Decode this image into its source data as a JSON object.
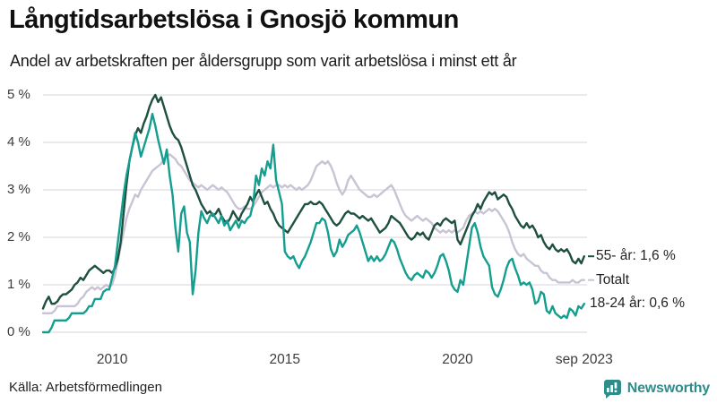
{
  "header": {
    "title": "Långtidsarbetslösa i Gnosjö kommun",
    "subtitle": "Andel av arbetskraften per åldersgrupp som varit arbetslösa i minst ett år"
  },
  "footer": {
    "source": "Källa: Arbetsförmedlingen",
    "brand": "Newsworthy"
  },
  "colors": {
    "series_55": "#1f4f40",
    "series_total": "#c8c4d4",
    "series_1824": "#149e8f",
    "grid": "#dedee3",
    "tick_text": "#3c3c3c",
    "brand": "#2e8c8a"
  },
  "chart_data": {
    "type": "line",
    "title": "Långtidsarbetslösa i Gnosjö kommun",
    "subtitle": "Andel av arbetskraften per åldersgrupp som varit arbetslösa i minst ett år",
    "unit": "%",
    "x_start": "2008-01",
    "x_end": "2023-09",
    "frequency": "monthly",
    "x_domain": [
      2008,
      2023.75
    ],
    "y_domain": [
      0,
      5
    ],
    "grid": "horizontal",
    "legend_position": "right-end-of-line",
    "y_ticks": [
      {
        "value": 0,
        "label": "0 %"
      },
      {
        "value": 1,
        "label": "1 %"
      },
      {
        "value": 2,
        "label": "2 %"
      },
      {
        "value": 3,
        "label": "3 %"
      },
      {
        "value": 4,
        "label": "4 %"
      },
      {
        "value": 5,
        "label": "5 %"
      }
    ],
    "x_ticks": [
      {
        "t": 2010,
        "label": "2010"
      },
      {
        "t": 2015,
        "label": "2015"
      },
      {
        "t": 2020,
        "label": "2020"
      },
      {
        "t": 2023.667,
        "label": "sep 2023"
      }
    ],
    "series": [
      {
        "name": "Totalt",
        "color_key": "series_total",
        "last_value_label": "Totalt",
        "legend": {
          "label": "Totalt",
          "dash": true
        },
        "values": [
          0.4,
          0.4,
          0.4,
          0.4,
          0.45,
          0.55,
          0.55,
          0.55,
          0.55,
          0.55,
          0.55,
          0.55,
          0.6,
          0.7,
          0.75,
          0.85,
          0.9,
          0.95,
          0.9,
          0.95,
          0.9,
          0.95,
          1.0,
          0.95,
          1.0,
          1.2,
          1.5,
          1.8,
          2.1,
          2.4,
          2.6,
          2.75,
          2.9,
          2.85,
          3.0,
          3.1,
          3.2,
          3.3,
          3.4,
          3.45,
          3.5,
          3.55,
          3.65,
          3.7,
          3.75,
          3.7,
          3.65,
          3.55,
          3.5,
          3.4,
          3.3,
          3.2,
          3.15,
          3.1,
          3.05,
          3.1,
          3.05,
          3.0,
          3.05,
          3.1,
          3.05,
          3.0,
          3.05,
          3.0,
          2.95,
          2.85,
          2.75,
          2.65,
          2.6,
          2.6,
          2.65,
          2.6,
          2.6,
          2.65,
          2.75,
          2.85,
          2.95,
          3.0,
          3.05,
          3.1,
          3.05,
          3.1,
          3.1,
          3.05,
          3.1,
          3.05,
          3.1,
          3.05,
          3.0,
          3.05,
          3.0,
          3.05,
          3.1,
          3.2,
          3.35,
          3.5,
          3.55,
          3.6,
          3.55,
          3.6,
          3.5,
          3.35,
          3.15,
          3.0,
          2.9,
          3.0,
          3.2,
          3.3,
          3.2,
          3.1,
          3.0,
          2.95,
          2.9,
          2.85,
          2.85,
          2.9,
          2.85,
          2.9,
          2.95,
          3.0,
          3.05,
          3.1,
          3.0,
          2.85,
          2.7,
          2.55,
          2.45,
          2.4,
          2.35,
          2.4,
          2.45,
          2.4,
          2.35,
          2.4,
          2.35,
          2.3,
          2.2,
          2.15,
          2.1,
          2.15,
          2.1,
          2.15,
          2.1,
          2.15,
          2.1,
          2.15,
          2.2,
          2.35,
          2.45,
          2.5,
          2.55,
          2.5,
          2.55,
          2.5,
          2.55,
          2.6,
          2.55,
          2.6,
          2.55,
          2.45,
          2.35,
          2.25,
          2.1,
          1.9,
          1.75,
          1.65,
          1.6,
          1.65,
          1.55,
          1.5,
          1.45,
          1.4,
          1.4,
          1.3,
          1.25,
          1.25,
          1.15,
          1.1,
          1.1,
          1.05,
          1.05,
          1.05,
          1.05,
          1.05,
          1.1,
          1.05,
          1.05,
          1.1,
          1.1
        ]
      },
      {
        "name": "55- år",
        "color_key": "series_55",
        "last_value_label": "55- år: 1,6 %",
        "legend": {
          "label": "55- år: 1,6 %",
          "dash": true
        },
        "values": [
          0.5,
          0.65,
          0.75,
          0.6,
          0.6,
          0.65,
          0.75,
          0.8,
          0.8,
          0.85,
          0.9,
          1.0,
          1.05,
          1.15,
          1.1,
          1.2,
          1.3,
          1.35,
          1.4,
          1.35,
          1.3,
          1.25,
          1.3,
          1.3,
          1.25,
          1.35,
          1.55,
          1.9,
          2.5,
          3.1,
          3.6,
          3.9,
          4.15,
          4.3,
          4.2,
          4.4,
          4.55,
          4.75,
          4.9,
          5.0,
          4.85,
          4.95,
          4.75,
          4.55,
          4.35,
          4.2,
          4.1,
          4.05,
          3.9,
          3.7,
          3.5,
          3.3,
          3.1,
          3.0,
          2.85,
          2.7,
          2.6,
          2.5,
          2.55,
          2.45,
          2.5,
          2.6,
          2.45,
          2.35,
          2.3,
          2.4,
          2.55,
          2.45,
          2.35,
          2.5,
          2.6,
          2.7,
          2.85,
          2.75,
          2.9,
          3.0,
          2.85,
          2.7,
          2.75,
          2.6,
          2.5,
          2.35,
          2.25,
          2.2,
          2.15,
          2.1,
          2.2,
          2.3,
          2.4,
          2.5,
          2.6,
          2.7,
          2.7,
          2.75,
          2.7,
          2.7,
          2.75,
          2.7,
          2.6,
          2.5,
          2.4,
          2.3,
          2.25,
          2.3,
          2.4,
          2.5,
          2.55,
          2.5,
          2.5,
          2.45,
          2.4,
          2.45,
          2.4,
          2.35,
          2.4,
          2.3,
          2.2,
          2.1,
          2.15,
          2.2,
          2.3,
          2.45,
          2.4,
          2.35,
          2.3,
          2.2,
          2.1,
          2.0,
          1.95,
          2.0,
          2.1,
          2.05,
          2.1,
          2.0,
          1.95,
          2.1,
          2.25,
          2.3,
          2.25,
          2.35,
          2.4,
          2.35,
          2.3,
          2.35,
          1.95,
          1.85,
          2.0,
          2.15,
          2.3,
          2.45,
          2.55,
          2.7,
          2.6,
          2.75,
          2.85,
          2.95,
          2.9,
          2.95,
          2.8,
          2.85,
          2.9,
          2.85,
          2.7,
          2.6,
          2.45,
          2.35,
          2.25,
          2.2,
          2.3,
          2.2,
          2.25,
          2.15,
          2.0,
          2.05,
          1.9,
          1.8,
          1.75,
          1.85,
          1.75,
          1.7,
          1.75,
          1.7,
          1.75,
          1.65,
          1.5,
          1.45,
          1.55,
          1.45,
          1.6
        ]
      },
      {
        "name": "18-24 år",
        "color_key": "series_1824",
        "last_value_label": "18-24 år: 0,6 %",
        "legend": {
          "label": "18-24 år: 0,6 %",
          "dash": false
        },
        "values": [
          0.0,
          0.0,
          0.0,
          0.1,
          0.25,
          0.25,
          0.25,
          0.25,
          0.25,
          0.3,
          0.4,
          0.4,
          0.4,
          0.4,
          0.4,
          0.45,
          0.55,
          0.55,
          0.7,
          0.7,
          0.7,
          0.85,
          0.9,
          0.9,
          1.15,
          1.4,
          1.9,
          2.4,
          2.9,
          3.3,
          3.6,
          3.9,
          4.2,
          4.0,
          3.7,
          3.9,
          4.1,
          4.3,
          4.6,
          4.35,
          4.05,
          3.8,
          3.55,
          3.85,
          3.3,
          2.9,
          2.2,
          1.7,
          2.5,
          2.65,
          2.1,
          1.9,
          0.8,
          1.3,
          2.1,
          2.55,
          2.4,
          2.3,
          2.45,
          2.5,
          2.4,
          2.3,
          2.45,
          2.25,
          2.35,
          2.15,
          2.25,
          2.35,
          2.2,
          2.35,
          2.3,
          2.4,
          2.45,
          2.7,
          3.3,
          3.1,
          3.45,
          3.3,
          3.6,
          3.45,
          3.95,
          3.2,
          2.95,
          2.7,
          1.7,
          1.6,
          1.55,
          1.6,
          1.45,
          1.35,
          1.5,
          1.6,
          1.75,
          1.9,
          2.1,
          2.3,
          2.3,
          2.4,
          2.35,
          2.1,
          1.75,
          1.6,
          1.7,
          1.95,
          1.8,
          1.9,
          2.05,
          2.1,
          2.15,
          2.25,
          2.1,
          1.9,
          1.7,
          1.5,
          1.6,
          1.5,
          1.6,
          1.5,
          1.55,
          1.65,
          1.8,
          1.95,
          1.9,
          1.75,
          1.55,
          1.4,
          1.25,
          1.15,
          1.1,
          1.2,
          1.25,
          1.2,
          1.15,
          1.3,
          1.25,
          1.15,
          1.25,
          1.4,
          1.6,
          1.65,
          1.5,
          1.3,
          1.0,
          0.9,
          0.85,
          1.1,
          1.0,
          1.4,
          1.8,
          2.2,
          2.3,
          2.1,
          1.8,
          1.6,
          1.5,
          1.4,
          0.95,
          0.8,
          0.75,
          0.9,
          1.1,
          1.35,
          1.5,
          1.55,
          1.35,
          1.2,
          1.0,
          1.05,
          1.0,
          1.05,
          0.9,
          0.6,
          0.65,
          0.85,
          0.8,
          0.45,
          0.4,
          0.55,
          0.4,
          0.35,
          0.3,
          0.35,
          0.3,
          0.5,
          0.45,
          0.35,
          0.55,
          0.5,
          0.6
        ]
      }
    ]
  }
}
